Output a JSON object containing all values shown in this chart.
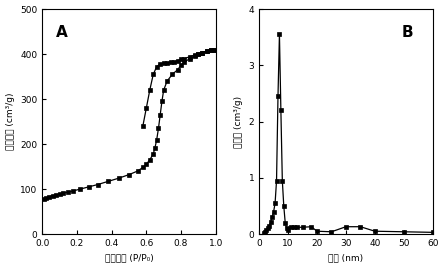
{
  "panel_A": {
    "label": "A",
    "xlabel": "相对压力 (P/P₀)",
    "ylabel": "吸附体积 (cm³/g)",
    "xlim": [
      0.0,
      1.0
    ],
    "ylim": [
      0,
      500
    ],
    "xticks": [
      0.0,
      0.2,
      0.4,
      0.6,
      0.8,
      1.0
    ],
    "yticks": [
      0,
      100,
      200,
      300,
      400,
      500
    ],
    "adsorption_x": [
      0.01,
      0.02,
      0.04,
      0.06,
      0.08,
      0.1,
      0.12,
      0.15,
      0.18,
      0.22,
      0.27,
      0.32,
      0.38,
      0.44,
      0.5,
      0.55,
      0.58,
      0.6,
      0.62,
      0.64,
      0.65,
      0.66,
      0.67,
      0.68,
      0.69,
      0.7,
      0.72,
      0.75,
      0.78,
      0.8,
      0.82,
      0.85,
      0.88,
      0.9,
      0.92,
      0.95,
      0.97,
      0.99
    ],
    "adsorption_y": [
      78,
      80,
      83,
      85,
      87,
      89,
      91,
      93,
      96,
      100,
      105,
      110,
      117,
      124,
      132,
      140,
      148,
      155,
      165,
      178,
      192,
      210,
      235,
      265,
      295,
      320,
      340,
      355,
      365,
      375,
      382,
      390,
      395,
      400,
      403,
      406,
      408,
      410
    ],
    "desorption_x": [
      0.99,
      0.97,
      0.95,
      0.92,
      0.9,
      0.88,
      0.85,
      0.82,
      0.8,
      0.78,
      0.76,
      0.74,
      0.72,
      0.7,
      0.68,
      0.66,
      0.64,
      0.62,
      0.6,
      0.58
    ],
    "desorption_y": [
      410,
      408,
      406,
      403,
      400,
      398,
      394,
      390,
      388,
      385,
      383,
      382,
      381,
      380,
      378,
      372,
      355,
      320,
      280,
      240
    ]
  },
  "panel_B": {
    "label": "B",
    "xlabel": "孔径 (nm)",
    "ylabel": "孔体积 (cm³/g)",
    "xlim": [
      0,
      60
    ],
    "ylim": [
      0,
      4
    ],
    "xticks": [
      0,
      10,
      20,
      30,
      40,
      50,
      60
    ],
    "yticks": [
      0,
      1,
      2,
      3,
      4
    ],
    "pore_x": [
      1.5,
      2.0,
      2.5,
      3.0,
      3.5,
      4.0,
      4.5,
      5.0,
      5.5,
      6.0,
      6.5,
      7.0,
      7.5,
      8.0,
      8.5,
      9.0,
      9.5,
      10.0,
      11.0,
      12.0,
      13.0,
      15.0,
      18.0,
      20.0,
      25.0,
      30.0,
      35.0,
      40.0,
      50.0,
      60.0
    ],
    "pore_y": [
      0.02,
      0.04,
      0.07,
      0.1,
      0.15,
      0.22,
      0.3,
      0.4,
      0.55,
      0.95,
      2.45,
      3.55,
      2.2,
      0.95,
      0.5,
      0.2,
      0.1,
      0.07,
      0.13,
      0.12,
      0.12,
      0.12,
      0.13,
      0.05,
      0.04,
      0.13,
      0.13,
      0.05,
      0.04,
      0.03
    ]
  },
  "line_color": "#000000",
  "marker": "s",
  "markersize": 3.0,
  "linewidth": 0.9,
  "bg_color": "#ffffff",
  "font_color": "#000000"
}
